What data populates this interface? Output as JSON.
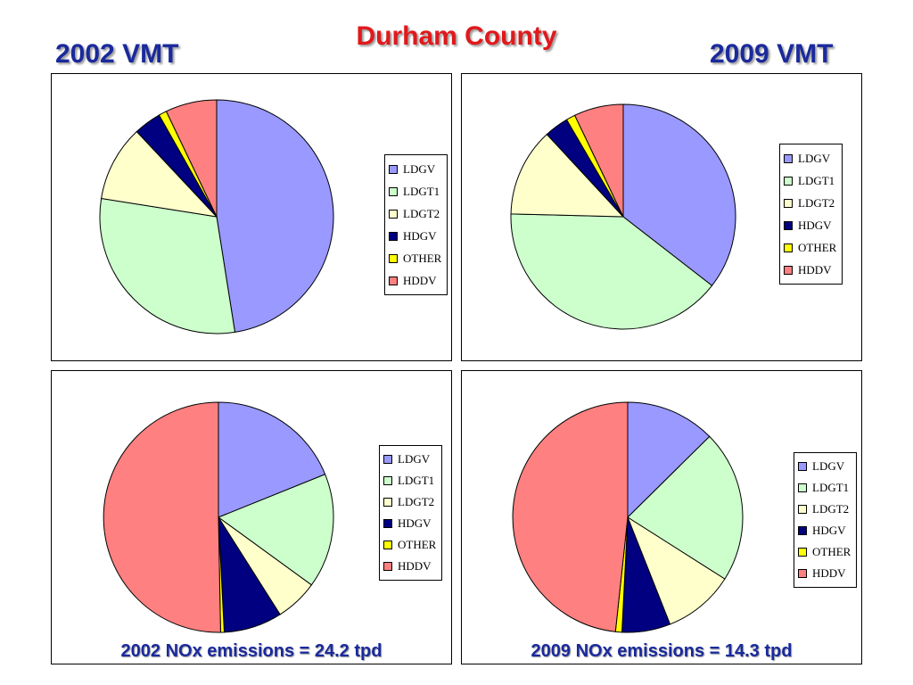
{
  "title": "Durham County",
  "colors": {
    "LDGV": "#9999ff",
    "LDGT1": "#ccffcc",
    "LDGT2": "#ffffcc",
    "HDGV": "#000080",
    "OTHER": "#ffff00",
    "HDDV": "#ff8080"
  },
  "chart_data": [
    {
      "type": "pie",
      "title": "2002 VMT",
      "caption": "",
      "labels": [
        "LDGV",
        "LDGT1",
        "LDGT2",
        "HDGV",
        "OTHER",
        "HDDV"
      ],
      "values": [
        47.5,
        30.0,
        10.5,
        3.8,
        1.1,
        7.1
      ]
    },
    {
      "type": "pie",
      "title": "2009 VMT",
      "caption": "",
      "labels": [
        "LDGV",
        "LDGT1",
        "LDGT2",
        "HDGV",
        "OTHER",
        "HDDV"
      ],
      "values": [
        35.5,
        39.9,
        12.7,
        3.5,
        1.3,
        7.1
      ]
    },
    {
      "type": "pie",
      "title": "",
      "caption": "2002 NOx emissions = 24.2 tpd",
      "labels": [
        "LDGV",
        "LDGT1",
        "LDGT2",
        "HDGV",
        "OTHER",
        "HDDV"
      ],
      "values": [
        18.9,
        16.1,
        6.0,
        8.2,
        0.5,
        50.3
      ]
    },
    {
      "type": "pie",
      "title": "",
      "caption": "2009 NOx emissions = 14.3 tpd",
      "labels": [
        "LDGV",
        "LDGT1",
        "LDGT2",
        "HDGV",
        "OTHER",
        "HDDV"
      ],
      "values": [
        12.6,
        21.4,
        10.0,
        6.8,
        0.9,
        48.3
      ]
    }
  ]
}
